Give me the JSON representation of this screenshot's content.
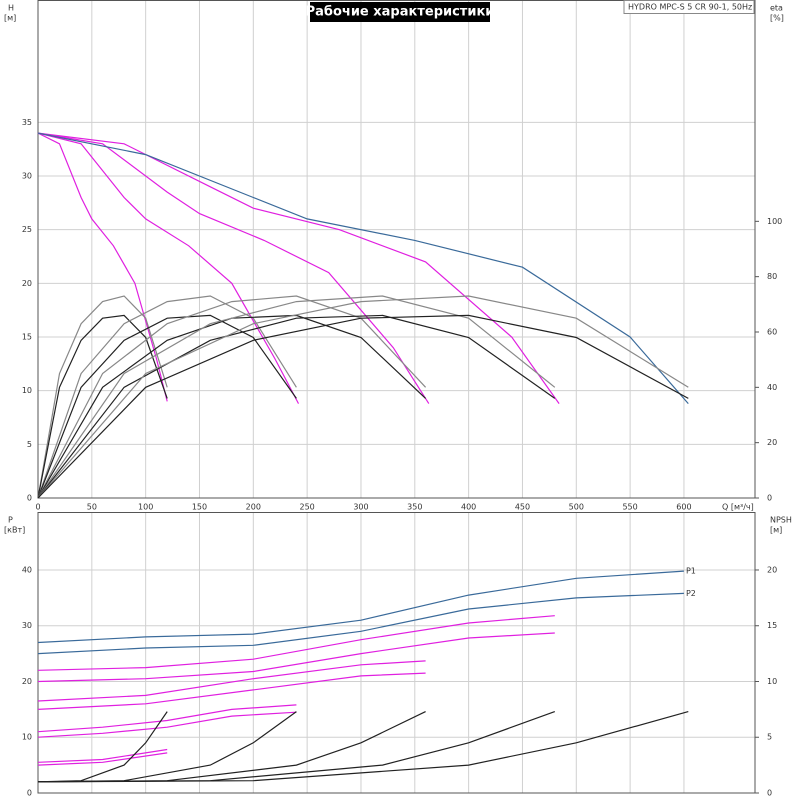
{
  "chart_data": [
    {
      "type": "line",
      "title": "Рабочие характеристики",
      "subtitle": "HYDRO MPC-S 5 CR 90-1, 50Hz",
      "ylabel": "H",
      "yunit": "[м]",
      "y2label": "eta",
      "y2unit": "[%]",
      "xlabel": "Q [м³/ч]",
      "xlim": [
        0,
        666
      ],
      "xticks": [
        0,
        50,
        100,
        150,
        200,
        250,
        300,
        350,
        400,
        450,
        500,
        550,
        600
      ],
      "ylim": [
        0,
        46.4
      ],
      "yticks": [
        0,
        5,
        10,
        15,
        20,
        25,
        30,
        35
      ],
      "y2lim": [
        0,
        180
      ],
      "y2ticks": [
        0,
        20,
        40,
        60,
        80,
        100
      ],
      "grid": true,
      "x_tick_labels": true,
      "series": [
        {
          "color": "#e020e0",
          "x": [
            0,
            20,
            40,
            50,
            70,
            90,
            110,
            120
          ],
          "values": [
            34,
            33,
            28,
            26,
            23.5,
            20,
            13,
            9
          ]
        },
        {
          "color": "#e020e0",
          "x": [
            0,
            40,
            80,
            100,
            140,
            180,
            220,
            242
          ],
          "values": [
            34,
            33,
            28,
            26,
            23.5,
            20,
            13,
            8.8
          ]
        },
        {
          "color": "#e020e0",
          "x": [
            0,
            60,
            120,
            150,
            210,
            270,
            330,
            363
          ],
          "values": [
            34,
            33,
            28.5,
            26.5,
            24,
            21,
            14,
            8.8
          ]
        },
        {
          "color": "#e020e0",
          "x": [
            0,
            80,
            160,
            200,
            280,
            360,
            440,
            484
          ],
          "values": [
            34,
            33,
            29,
            27,
            25,
            22,
            15,
            8.8
          ]
        },
        {
          "color": "#3a6a9a",
          "x": [
            0,
            100,
            200,
            250,
            350,
            450,
            550,
            604
          ],
          "values": [
            34,
            32,
            28,
            26,
            24,
            21.5,
            15,
            8.8
          ]
        },
        {
          "color": "#888888",
          "axis": "y2",
          "x": [
            0,
            20,
            40,
            60,
            80,
            100,
            120
          ],
          "values": [
            0,
            45,
            63,
            71,
            73,
            65,
            40
          ]
        },
        {
          "color": "#222222",
          "axis": "y2",
          "x": [
            0,
            20,
            40,
            60,
            80,
            100,
            120
          ],
          "values": [
            0,
            40,
            57,
            65,
            66,
            58,
            36
          ]
        },
        {
          "color": "#888888",
          "axis": "y2",
          "x": [
            0,
            40,
            80,
            120,
            160,
            200,
            240
          ],
          "values": [
            0,
            45,
            63,
            71,
            73,
            65,
            40
          ]
        },
        {
          "color": "#222222",
          "axis": "y2",
          "x": [
            0,
            40,
            80,
            120,
            160,
            200,
            240
          ],
          "values": [
            0,
            40,
            57,
            65,
            66,
            58,
            36
          ]
        },
        {
          "color": "#888888",
          "axis": "y2",
          "x": [
            0,
            60,
            120,
            180,
            240,
            300,
            360
          ],
          "values": [
            0,
            45,
            63,
            71,
            73,
            65,
            40
          ]
        },
        {
          "color": "#222222",
          "axis": "y2",
          "x": [
            0,
            60,
            120,
            180,
            240,
            300,
            360
          ],
          "values": [
            0,
            40,
            57,
            65,
            66,
            58,
            36
          ]
        },
        {
          "color": "#888888",
          "axis": "y2",
          "x": [
            0,
            80,
            160,
            240,
            320,
            400,
            480
          ],
          "values": [
            0,
            45,
            63,
            71,
            73,
            65,
            40
          ]
        },
        {
          "color": "#222222",
          "axis": "y2",
          "x": [
            0,
            80,
            160,
            240,
            320,
            400,
            480
          ],
          "values": [
            0,
            40,
            57,
            65,
            66,
            58,
            36
          ]
        },
        {
          "color": "#888888",
          "axis": "y2",
          "x": [
            0,
            100,
            200,
            300,
            400,
            500,
            604
          ],
          "values": [
            0,
            45,
            63,
            71,
            73,
            65,
            40
          ]
        },
        {
          "color": "#222222",
          "axis": "y2",
          "x": [
            0,
            100,
            200,
            300,
            400,
            500,
            604
          ],
          "values": [
            0,
            40,
            57,
            65,
            66,
            58,
            36
          ]
        }
      ]
    },
    {
      "type": "line",
      "ylabel": "P",
      "yunit": "[кВт]",
      "y2label": "NPSH",
      "y2unit": "[м]",
      "xlim": [
        0,
        666
      ],
      "xticks": [
        0,
        50,
        100,
        150,
        200,
        250,
        300,
        350,
        400,
        450,
        500,
        550,
        600
      ],
      "ylim": [
        0,
        50.4
      ],
      "yticks": [
        0,
        10,
        20,
        30,
        40
      ],
      "y2lim": [
        0,
        25.2
      ],
      "y2ticks": [
        0,
        5,
        10,
        15,
        20
      ],
      "grid": true,
      "x_tick_labels": false,
      "series": [
        {
          "name": "P1",
          "color": "#3a6a9a",
          "x": [
            0,
            100,
            200,
            300,
            400,
            500,
            600
          ],
          "values": [
            27,
            28,
            28.5,
            31,
            35.5,
            38.5,
            39.8
          ]
        },
        {
          "name": "P2",
          "color": "#3a6a9a",
          "x": [
            0,
            100,
            200,
            300,
            400,
            500,
            600
          ],
          "values": [
            25,
            26,
            26.5,
            29,
            33,
            35,
            35.8
          ]
        },
        {
          "color": "#e020e0",
          "x": [
            0,
            100,
            200,
            300,
            400,
            480
          ],
          "values": [
            22,
            22.5,
            24,
            27.5,
            30.5,
            31.8
          ]
        },
        {
          "color": "#e020e0",
          "x": [
            0,
            100,
            200,
            300,
            400,
            480
          ],
          "values": [
            20,
            20.5,
            21.8,
            25,
            27.8,
            28.7
          ]
        },
        {
          "color": "#e020e0",
          "x": [
            0,
            100,
            200,
            300,
            360
          ],
          "values": [
            16.5,
            17.5,
            20.5,
            23,
            23.7
          ]
        },
        {
          "color": "#e020e0",
          "x": [
            0,
            100,
            200,
            300,
            360
          ],
          "values": [
            15,
            16,
            18.5,
            21,
            21.5
          ]
        },
        {
          "color": "#e020e0",
          "x": [
            0,
            60,
            120,
            180,
            240
          ],
          "values": [
            11,
            11.8,
            13,
            15,
            15.8
          ]
        },
        {
          "color": "#e020e0",
          "x": [
            0,
            60,
            120,
            180,
            240
          ],
          "values": [
            10,
            10.7,
            11.8,
            13.8,
            14.5
          ]
        },
        {
          "color": "#e020e0",
          "x": [
            0,
            60,
            120
          ],
          "values": [
            5.5,
            6,
            7.8
          ]
        },
        {
          "color": "#e020e0",
          "x": [
            0,
            60,
            120
          ],
          "values": [
            5,
            5.5,
            7.2
          ]
        },
        {
          "color": "#222222",
          "axis": "y2",
          "x": [
            0,
            40,
            80,
            100,
            120
          ],
          "values": [
            1,
            1.1,
            2.5,
            4.5,
            7.3
          ]
        },
        {
          "color": "#222222",
          "axis": "y2",
          "x": [
            0,
            80,
            160,
            200,
            240
          ],
          "values": [
            1,
            1.1,
            2.5,
            4.5,
            7.3
          ]
        },
        {
          "color": "#222222",
          "axis": "y2",
          "x": [
            0,
            120,
            240,
            300,
            360
          ],
          "values": [
            1,
            1.1,
            2.5,
            4.5,
            7.3
          ]
        },
        {
          "color": "#222222",
          "axis": "y2",
          "x": [
            0,
            160,
            320,
            400,
            480
          ],
          "values": [
            1,
            1.1,
            2.5,
            4.5,
            7.3
          ]
        },
        {
          "color": "#222222",
          "axis": "y2",
          "x": [
            0,
            200,
            400,
            500,
            604
          ],
          "values": [
            1,
            1.1,
            2.5,
            4.5,
            7.3
          ]
        }
      ]
    }
  ]
}
